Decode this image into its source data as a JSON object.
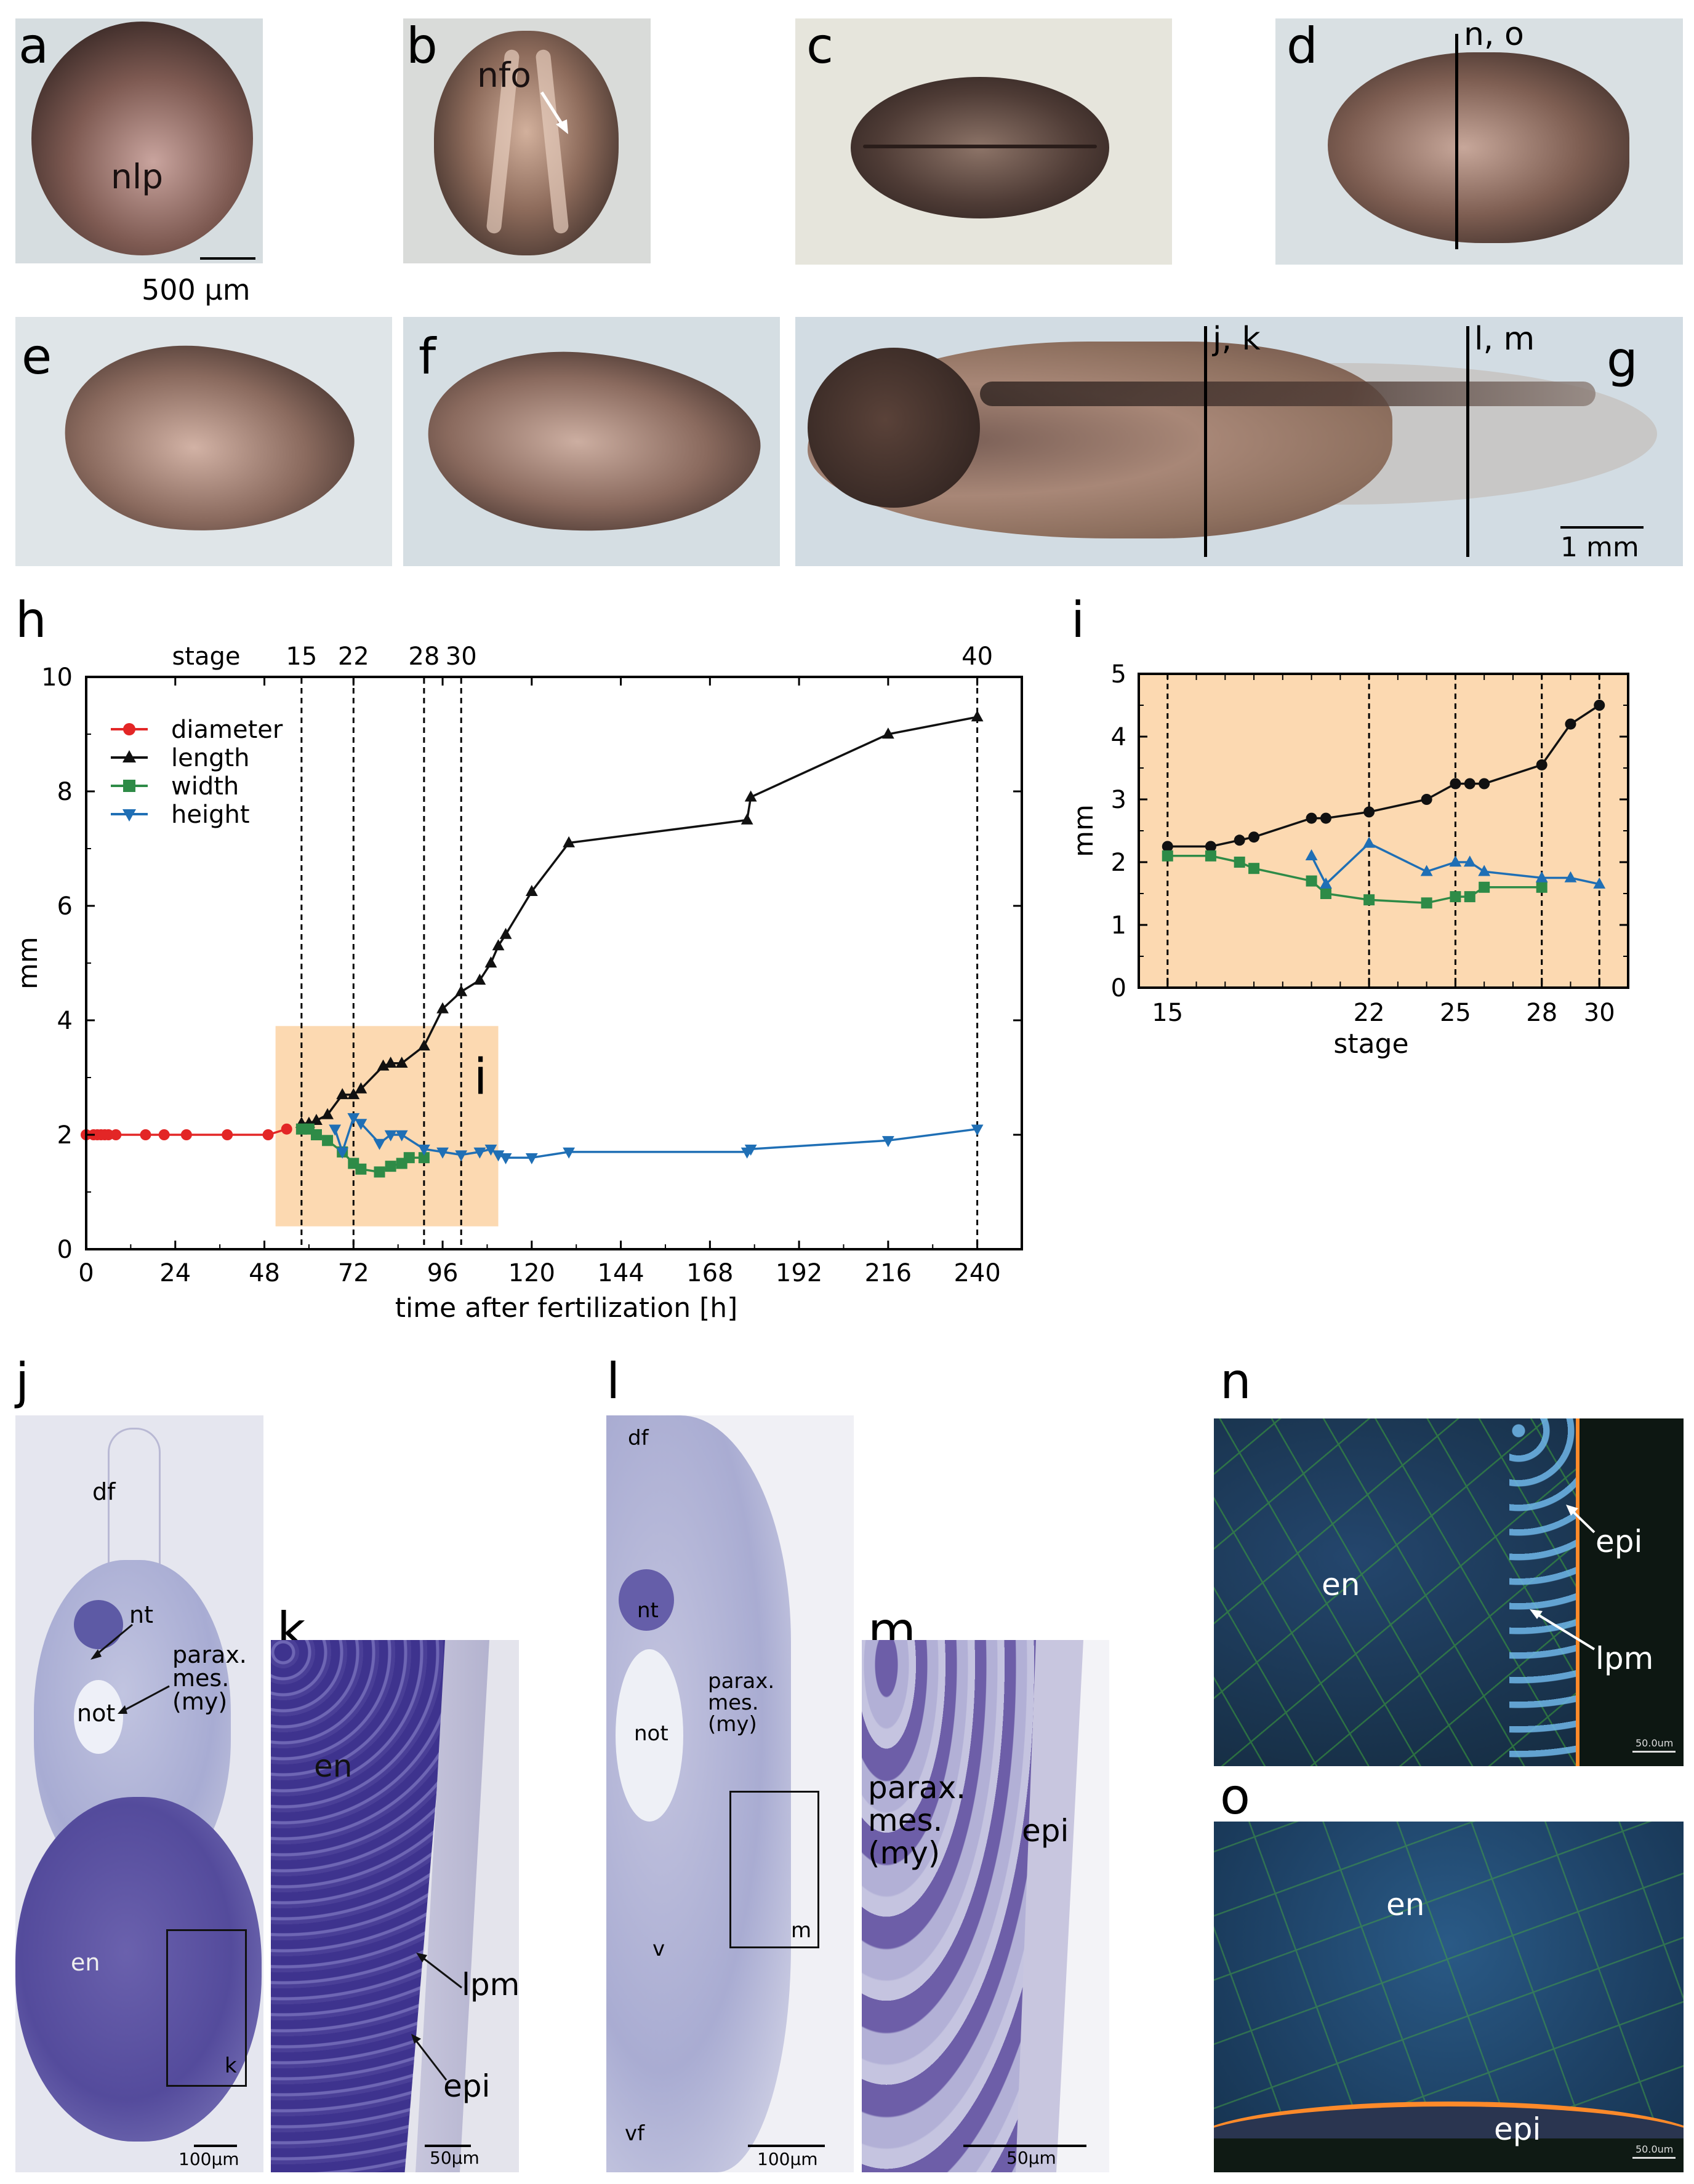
{
  "panels": {
    "a": {
      "label": "a",
      "annot": "nlp",
      "scale": "500 µm"
    },
    "b": {
      "label": "b",
      "annot": "nfo"
    },
    "c": {
      "label": "c"
    },
    "d": {
      "label": "d",
      "cut": "n, o"
    },
    "e": {
      "label": "e"
    },
    "f": {
      "label": "f"
    },
    "g": {
      "label": "g",
      "cut1": "j, k",
      "cut2": "l, m",
      "scale": "1 mm"
    },
    "h": {
      "label": "h",
      "inset_label": "i"
    },
    "i": {
      "label": "i"
    },
    "j": {
      "label": "j",
      "labels": [
        "df",
        "nt",
        "parax.",
        "mes.",
        "(my)",
        "not",
        "en",
        "k"
      ],
      "scale": "100µm"
    },
    "k": {
      "label": "k",
      "labels": [
        "en",
        "lpm",
        "epi"
      ],
      "scale": "50µm"
    },
    "l": {
      "label": "l",
      "labels": [
        "df",
        "nt",
        "parax.",
        "mes.",
        "(my)",
        "not",
        "v",
        "vf",
        "m"
      ],
      "scale": "100µm"
    },
    "m": {
      "label": "m",
      "labels": [
        "parax.",
        "mes.",
        "(my)",
        "epi"
      ],
      "scale": "50µm"
    },
    "n": {
      "label": "n",
      "labels": [
        "en",
        "epi",
        "lpm"
      ],
      "scale": "50.0um"
    },
    "o": {
      "label": "o",
      "labels": [
        "en",
        "epi"
      ],
      "scale": "50.0um"
    }
  },
  "colors": {
    "diameter": "#e32626",
    "length": "#111111",
    "width": "#2e8b47",
    "height": "#1f6fb5",
    "highlight": "#fcd9b1"
  },
  "chart_data": [
    {
      "id": "h",
      "type": "line",
      "xlabel": "time after fertilization [h]",
      "ylabel": "mm",
      "xlim": [
        0,
        252
      ],
      "ylim": [
        0,
        10
      ],
      "xticks": [
        0,
        24,
        48,
        72,
        96,
        120,
        144,
        168,
        192,
        216,
        240
      ],
      "yticks": [
        0,
        2,
        4,
        6,
        8,
        10
      ],
      "stage_title": "stage",
      "stage_marks": [
        {
          "label": "15",
          "x": 58
        },
        {
          "label": "22",
          "x": 72
        },
        {
          "label": "28",
          "x": 91
        },
        {
          "label": "30",
          "x": 101
        },
        {
          "label": "40",
          "x": 240
        }
      ],
      "highlight": {
        "x": [
          51,
          111
        ],
        "y": [
          0.4,
          3.9
        ]
      },
      "legend": "top-left",
      "series": [
        {
          "name": "diameter",
          "marker": "circle",
          "x": [
            0,
            2,
            3,
            4,
            5,
            6,
            8,
            16,
            21,
            27,
            38,
            49,
            54
          ],
          "y": [
            2.0,
            2.0,
            2.0,
            2.0,
            2.0,
            2.0,
            2.0,
            2.0,
            2.0,
            2.0,
            2.0,
            2.0,
            2.1
          ]
        },
        {
          "name": "length",
          "marker": "triangle-up",
          "x": [
            58,
            60,
            62,
            65,
            69,
            72,
            74,
            80,
            82,
            85,
            91,
            96,
            101,
            106,
            109,
            111,
            113,
            120,
            130,
            178,
            179,
            216,
            240
          ],
          "y": [
            2.2,
            2.2,
            2.25,
            2.35,
            2.7,
            2.7,
            2.8,
            3.2,
            3.25,
            3.25,
            3.55,
            4.2,
            4.5,
            4.7,
            5.0,
            5.3,
            5.5,
            6.25,
            7.1,
            7.5,
            7.9,
            9.0,
            9.3
          ]
        },
        {
          "name": "width",
          "marker": "square",
          "x": [
            58,
            60,
            62,
            65,
            69,
            72,
            74,
            79,
            82,
            85,
            87,
            91
          ],
          "y": [
            2.1,
            2.1,
            2.0,
            1.9,
            1.7,
            1.5,
            1.4,
            1.35,
            1.45,
            1.5,
            1.6,
            1.6
          ]
        },
        {
          "name": "height",
          "marker": "triangle-down",
          "x": [
            67,
            69,
            72,
            74,
            79,
            82,
            85,
            91,
            96,
            101,
            106,
            109,
            111,
            113,
            120,
            130,
            178,
            179,
            216,
            240
          ],
          "y": [
            2.1,
            1.7,
            2.3,
            2.2,
            1.85,
            2.0,
            2.0,
            1.75,
            1.7,
            1.65,
            1.7,
            1.75,
            1.65,
            1.6,
            1.6,
            1.7,
            1.7,
            1.75,
            1.9,
            2.1
          ]
        }
      ]
    },
    {
      "id": "i",
      "type": "line",
      "xlabel": "stage",
      "ylabel": "mm",
      "xlim": [
        14,
        31
      ],
      "ylim": [
        0,
        5
      ],
      "xticks": [
        15,
        22,
        25,
        28,
        30
      ],
      "yticks": [
        0,
        1,
        2,
        3,
        4,
        5
      ],
      "vlines": [
        15,
        22,
        25,
        28,
        30
      ],
      "series": [
        {
          "name": "length",
          "marker": "circle",
          "x": [
            15,
            16.5,
            17.5,
            18,
            20,
            20.5,
            22,
            24,
            25,
            25.5,
            26,
            28,
            29,
            30
          ],
          "y": [
            2.25,
            2.25,
            2.35,
            2.4,
            2.7,
            2.7,
            2.8,
            3.0,
            3.25,
            3.25,
            3.25,
            3.55,
            4.2,
            4.5
          ]
        },
        {
          "name": "width",
          "marker": "square",
          "x": [
            15,
            16.5,
            17.5,
            18,
            20,
            20.5,
            22,
            24,
            25,
            25.5,
            26,
            28
          ],
          "y": [
            2.1,
            2.1,
            2.0,
            1.9,
            1.7,
            1.5,
            1.4,
            1.35,
            1.45,
            1.45,
            1.6,
            1.6
          ]
        },
        {
          "name": "height",
          "marker": "triangle-up",
          "x": [
            20,
            20.5,
            22,
            24,
            25,
            25.5,
            26,
            28,
            29,
            30
          ],
          "y": [
            2.1,
            1.65,
            2.3,
            1.85,
            2.0,
            2.0,
            1.85,
            1.75,
            1.75,
            1.65
          ]
        }
      ]
    }
  ]
}
